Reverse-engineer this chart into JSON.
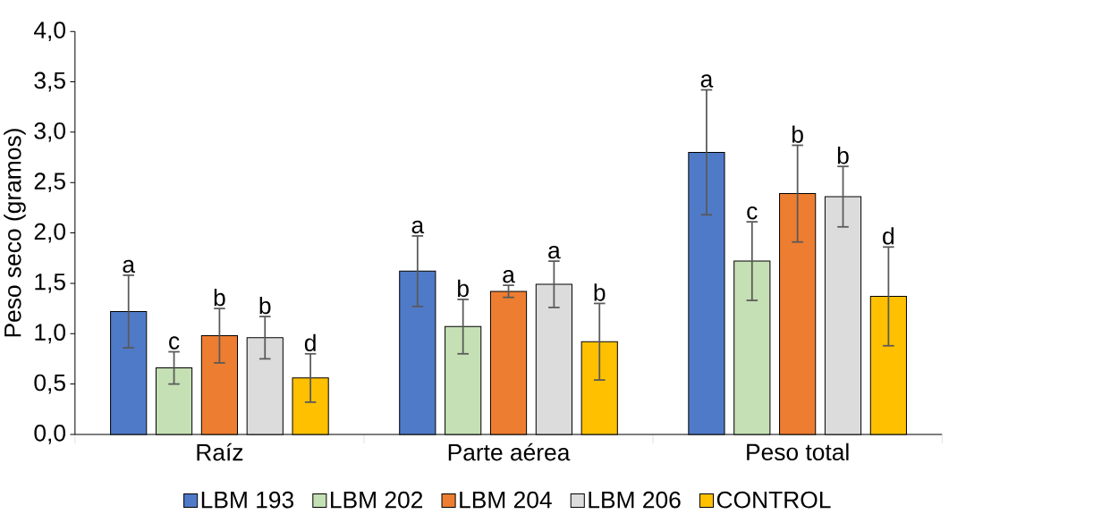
{
  "chart_data": {
    "type": "bar",
    "ylabel": "Peso seco (gramos)",
    "categories": [
      "Raíz",
      "Parte aérea",
      "Peso total"
    ],
    "series": [
      {
        "name": "LBM 193",
        "color": "#4f7ac7",
        "values": [
          1.22,
          1.62,
          2.8
        ],
        "errors": [
          0.36,
          0.35,
          0.62
        ],
        "value_labels": [
          "a",
          "a",
          "a"
        ]
      },
      {
        "name": "LBM 202",
        "color": "#c5e0b4",
        "values": [
          0.66,
          1.07,
          1.72
        ],
        "errors": [
          0.16,
          0.27,
          0.39
        ],
        "value_labels": [
          "c",
          "b",
          "c"
        ]
      },
      {
        "name": "LBM 204",
        "color": "#ed7d31",
        "values": [
          0.98,
          1.42,
          2.39
        ],
        "errors": [
          0.27,
          0.06,
          0.48
        ],
        "value_labels": [
          "b",
          "a",
          "b"
        ]
      },
      {
        "name": "LBM 206",
        "color": "#dcdcdc",
        "values": [
          0.96,
          1.49,
          2.36
        ],
        "errors": [
          0.21,
          0.23,
          0.3
        ],
        "value_labels": [
          "b",
          "a",
          "b"
        ]
      },
      {
        "name": "CONTROL",
        "color": "#ffc000",
        "values": [
          0.56,
          0.92,
          1.37
        ],
        "errors": [
          0.24,
          0.38,
          0.49
        ],
        "value_labels": [
          "d",
          "b",
          "d"
        ]
      }
    ],
    "ylim": [
      0,
      4
    ],
    "yticks": [
      {
        "value": 0,
        "label": "0,0"
      },
      {
        "value": 0.5,
        "label": "0,5"
      },
      {
        "value": 1,
        "label": "1,0"
      },
      {
        "value": 1.5,
        "label": "1,5"
      },
      {
        "value": 2,
        "label": "2,0"
      },
      {
        "value": 2.5,
        "label": "2,5"
      },
      {
        "value": 3,
        "label": "3,0"
      },
      {
        "value": 3.5,
        "label": "3,5"
      },
      {
        "value": 4,
        "label": "4,0"
      }
    ],
    "grid": false,
    "legend": "bottom"
  }
}
